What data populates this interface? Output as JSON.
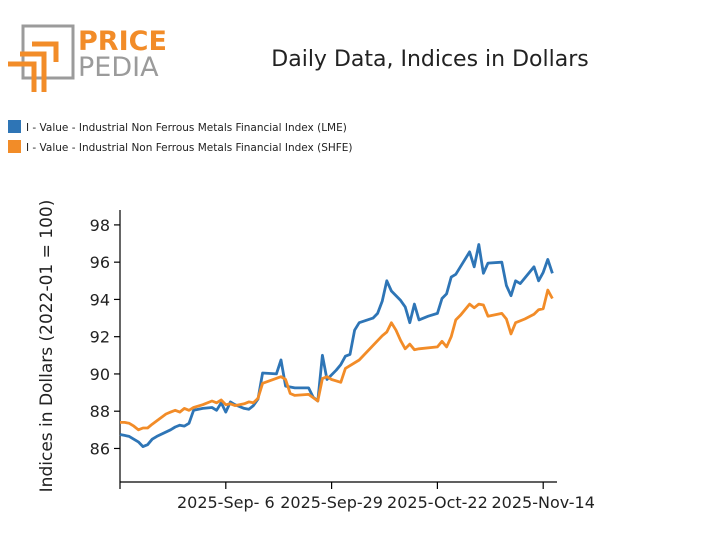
{
  "logo": {
    "top": "PRICE",
    "bottom": "PEDIA"
  },
  "colors": {
    "lme": "#2e75b6",
    "shfe": "#f28c28",
    "logo_orange": "#f28c28",
    "logo_gray": "#9b9b9b"
  },
  "chart_data": {
    "type": "line",
    "title": "Daily Data, Indices in Dollars",
    "ylabel": "Indices in Dollars (2022-01 = 100)",
    "xlabel": "",
    "ylim": [
      84.2,
      98.8
    ],
    "yticks": [
      86,
      88,
      90,
      92,
      94,
      96,
      98
    ],
    "xlim": [
      "2025-08-14",
      "2025-11-17"
    ],
    "xticks": [
      {
        "date": "2025-09-06",
        "label": "2025-Sep- 6"
      },
      {
        "date": "2025-09-29",
        "label": "2025-Sep-29"
      },
      {
        "date": "2025-10-22",
        "label": "2025-Oct-22"
      },
      {
        "date": "2025-11-14",
        "label": "2025-Nov-14"
      }
    ],
    "legend_position": "top-left",
    "grid": false,
    "series": [
      {
        "name": "I - Value - Industrial Non Ferrous Metals Financial Index (LME)",
        "color": "#2e75b6",
        "points": [
          [
            "2025-08-14",
            86.75
          ],
          [
            "2025-08-15",
            86.7
          ],
          [
            "2025-08-16",
            86.65
          ],
          [
            "2025-08-17",
            86.5
          ],
          [
            "2025-08-18",
            86.35
          ],
          [
            "2025-08-19",
            86.1
          ],
          [
            "2025-08-20",
            86.2
          ],
          [
            "2025-08-21",
            86.5
          ],
          [
            "2025-08-22",
            86.65
          ],
          [
            "2025-08-25",
            87.0
          ],
          [
            "2025-08-26",
            87.15
          ],
          [
            "2025-08-27",
            87.25
          ],
          [
            "2025-08-28",
            87.2
          ],
          [
            "2025-08-29",
            87.35
          ],
          [
            "2025-08-30",
            88.05
          ],
          [
            "2025-09-01",
            88.15
          ],
          [
            "2025-09-03",
            88.2
          ],
          [
            "2025-09-04",
            88.05
          ],
          [
            "2025-09-05",
            88.45
          ],
          [
            "2025-09-06",
            87.95
          ],
          [
            "2025-09-07",
            88.5
          ],
          [
            "2025-09-08",
            88.35
          ],
          [
            "2025-09-10",
            88.15
          ],
          [
            "2025-09-11",
            88.1
          ],
          [
            "2025-09-12",
            88.3
          ],
          [
            "2025-09-13",
            88.65
          ],
          [
            "2025-09-14",
            90.05
          ],
          [
            "2025-09-17",
            90.0
          ],
          [
            "2025-09-18",
            90.75
          ],
          [
            "2025-09-19",
            89.35
          ],
          [
            "2025-09-20",
            89.3
          ],
          [
            "2025-09-21",
            89.25
          ],
          [
            "2025-09-24",
            89.25
          ],
          [
            "2025-09-25",
            88.75
          ],
          [
            "2025-09-26",
            88.55
          ],
          [
            "2025-09-27",
            91.0
          ],
          [
            "2025-09-28",
            89.7
          ],
          [
            "2025-09-30",
            90.2
          ],
          [
            "2025-10-01",
            90.5
          ],
          [
            "2025-10-02",
            90.95
          ],
          [
            "2025-10-03",
            91.05
          ],
          [
            "2025-10-04",
            92.35
          ],
          [
            "2025-10-05",
            92.75
          ],
          [
            "2025-10-08",
            93.0
          ],
          [
            "2025-10-09",
            93.25
          ],
          [
            "2025-10-10",
            93.9
          ],
          [
            "2025-10-11",
            95.0
          ],
          [
            "2025-10-12",
            94.45
          ],
          [
            "2025-10-14",
            93.95
          ],
          [
            "2025-10-15",
            93.6
          ],
          [
            "2025-10-16",
            92.75
          ],
          [
            "2025-10-17",
            93.75
          ],
          [
            "2025-10-18",
            92.9
          ],
          [
            "2025-10-20",
            93.1
          ],
          [
            "2025-10-22",
            93.25
          ],
          [
            "2025-10-23",
            94.05
          ],
          [
            "2025-10-24",
            94.3
          ],
          [
            "2025-10-25",
            95.2
          ],
          [
            "2025-10-26",
            95.35
          ],
          [
            "2025-10-27",
            95.75
          ],
          [
            "2025-10-29",
            96.55
          ],
          [
            "2025-10-30",
            95.75
          ],
          [
            "2025-10-31",
            96.95
          ],
          [
            "2025-11-01",
            95.4
          ],
          [
            "2025-11-02",
            95.95
          ],
          [
            "2025-11-05",
            96.0
          ],
          [
            "2025-11-06",
            94.75
          ],
          [
            "2025-11-07",
            94.2
          ],
          [
            "2025-11-08",
            95.0
          ],
          [
            "2025-11-09",
            94.85
          ],
          [
            "2025-11-12",
            95.75
          ],
          [
            "2025-11-13",
            95.0
          ],
          [
            "2025-11-14",
            95.45
          ],
          [
            "2025-11-15",
            96.15
          ],
          [
            "2025-11-16",
            95.4
          ]
        ]
      },
      {
        "name": "I - Value - Industrial Non Ferrous Metals Financial Index (SHFE)",
        "color": "#f28c28",
        "points": [
          [
            "2025-08-14",
            87.4
          ],
          [
            "2025-08-15",
            87.4
          ],
          [
            "2025-08-16",
            87.35
          ],
          [
            "2025-08-17",
            87.2
          ],
          [
            "2025-08-18",
            87.0
          ],
          [
            "2025-08-19",
            87.1
          ],
          [
            "2025-08-20",
            87.1
          ],
          [
            "2025-08-21",
            87.3
          ],
          [
            "2025-08-24",
            87.85
          ],
          [
            "2025-08-25",
            87.95
          ],
          [
            "2025-08-26",
            88.05
          ],
          [
            "2025-08-27",
            87.95
          ],
          [
            "2025-08-28",
            88.15
          ],
          [
            "2025-08-29",
            88.05
          ],
          [
            "2025-08-30",
            88.2
          ],
          [
            "2025-09-01",
            88.35
          ],
          [
            "2025-09-03",
            88.55
          ],
          [
            "2025-09-04",
            88.45
          ],
          [
            "2025-09-05",
            88.6
          ],
          [
            "2025-09-06",
            88.35
          ],
          [
            "2025-09-07",
            88.4
          ],
          [
            "2025-09-08",
            88.3
          ],
          [
            "2025-09-10",
            88.4
          ],
          [
            "2025-09-11",
            88.5
          ],
          [
            "2025-09-12",
            88.45
          ],
          [
            "2025-09-13",
            88.7
          ],
          [
            "2025-09-14",
            89.5
          ],
          [
            "2025-09-18",
            89.85
          ],
          [
            "2025-09-19",
            89.7
          ],
          [
            "2025-09-20",
            88.95
          ],
          [
            "2025-09-21",
            88.85
          ],
          [
            "2025-09-24",
            88.9
          ],
          [
            "2025-09-26",
            88.55
          ],
          [
            "2025-09-27",
            89.75
          ],
          [
            "2025-09-28",
            89.85
          ],
          [
            "2025-09-29",
            89.7
          ],
          [
            "2025-10-01",
            89.55
          ],
          [
            "2025-10-02",
            90.3
          ],
          [
            "2025-10-05",
            90.75
          ],
          [
            "2025-10-10",
            92.05
          ],
          [
            "2025-10-11",
            92.25
          ],
          [
            "2025-10-12",
            92.75
          ],
          [
            "2025-10-13",
            92.35
          ],
          [
            "2025-10-14",
            91.8
          ],
          [
            "2025-10-15",
            91.35
          ],
          [
            "2025-10-16",
            91.6
          ],
          [
            "2025-10-17",
            91.3
          ],
          [
            "2025-10-18",
            91.35
          ],
          [
            "2025-10-22",
            91.45
          ],
          [
            "2025-10-23",
            91.75
          ],
          [
            "2025-10-24",
            91.45
          ],
          [
            "2025-10-25",
            92.0
          ],
          [
            "2025-10-26",
            92.9
          ],
          [
            "2025-10-27",
            93.15
          ],
          [
            "2025-10-29",
            93.75
          ],
          [
            "2025-10-30",
            93.55
          ],
          [
            "2025-10-31",
            93.75
          ],
          [
            "2025-11-01",
            93.7
          ],
          [
            "2025-11-02",
            93.1
          ],
          [
            "2025-11-05",
            93.25
          ],
          [
            "2025-11-06",
            92.95
          ],
          [
            "2025-11-07",
            92.15
          ],
          [
            "2025-11-08",
            92.75
          ],
          [
            "2025-11-10",
            92.95
          ],
          [
            "2025-11-12",
            93.2
          ],
          [
            "2025-11-13",
            93.45
          ],
          [
            "2025-11-14",
            93.5
          ],
          [
            "2025-11-15",
            94.5
          ],
          [
            "2025-11-16",
            94.05
          ]
        ]
      }
    ]
  }
}
